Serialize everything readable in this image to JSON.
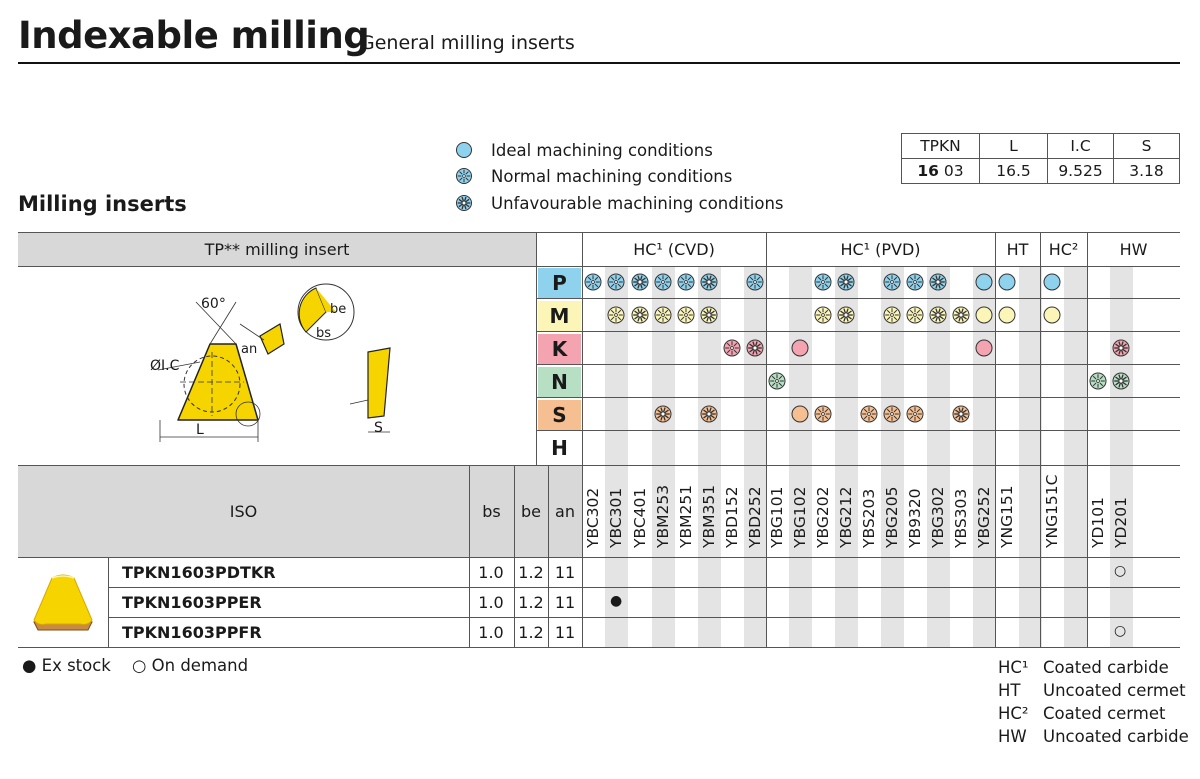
{
  "header": {
    "title": "Indexable milling",
    "subtitle": "General milling inserts"
  },
  "section_title": "Milling inserts",
  "legend": [
    {
      "icon": "ideal-circle-icon",
      "label": "Ideal machining conditions"
    },
    {
      "icon": "normal-flower-icon",
      "label": "Normal machining conditions"
    },
    {
      "icon": "unfavourable-flower-icon",
      "label": "Unfavourable machining conditions"
    }
  ],
  "dimension_table": {
    "headers": [
      "TPKN",
      "L",
      "I.C",
      "S"
    ],
    "row": {
      "code_bold": "16",
      "code_rest": "03",
      "L": "16.5",
      "IC": "9.525",
      "S": "3.18"
    }
  },
  "main_table": {
    "insert_title": "TP** milling insert",
    "groups": [
      "HC¹ (CVD)",
      "HC¹ (PVD)",
      "HT",
      "HC²",
      "HW"
    ],
    "materials": [
      "P",
      "M",
      "K",
      "N",
      "S",
      "H"
    ],
    "material_colors": {
      "P": "#8fd2ee",
      "M": "#fbf6b8",
      "K": "#f4a3b0",
      "N": "#b7dfc3",
      "S": "#f6bf91",
      "H": "#ffffff"
    },
    "iso_label": "ISO",
    "param_headers": [
      "bs",
      "be",
      "an"
    ],
    "grades": [
      "YBC302",
      "YBC301",
      "YBC401",
      "YBM253",
      "YBM251",
      "YBM351",
      "YBD152",
      "YBD252",
      "YBG101",
      "YBG102",
      "YBG202",
      "YBG212",
      "YBS203",
      "YBG205",
      "YB9320",
      "YBG302",
      "YBS303",
      "YBG252",
      "YNG151",
      "",
      "YNG151C",
      "",
      "YD101",
      "YD201"
    ],
    "drawing_labels": {
      "angle": "60°",
      "ic": "ØI.C",
      "l": "L",
      "an": "an",
      "be": "be",
      "bs": "bs",
      "s": "S"
    },
    "rows": [
      {
        "code": "TPKN1603PDTKR",
        "bs": "1.0",
        "be": "1.2",
        "an": "11",
        "mark": "○"
      },
      {
        "code": "TPKN1603PPER",
        "bs": "1.0",
        "be": "1.2",
        "an": "11",
        "mark": "●"
      },
      {
        "code": "TPKN1603PPFR",
        "bs": "1.0",
        "be": "1.2",
        "an": "11",
        "mark": "○"
      }
    ]
  },
  "footer": {
    "ex_stock": "● Ex stock",
    "on_demand": "○ On demand",
    "abbreviations": [
      {
        "code": "HC¹",
        "text": "Coated carbide"
      },
      {
        "code": "HT",
        "text": "Uncoated cermet"
      },
      {
        "code": "HC²",
        "text": "Coated cermet"
      },
      {
        "code": "HW",
        "text": "Uncoated carbide"
      }
    ]
  },
  "colors": {
    "ideal_fill": "#8fd2ee",
    "insert_yellow": "#f5d400",
    "insert_base": "#c98a43"
  }
}
